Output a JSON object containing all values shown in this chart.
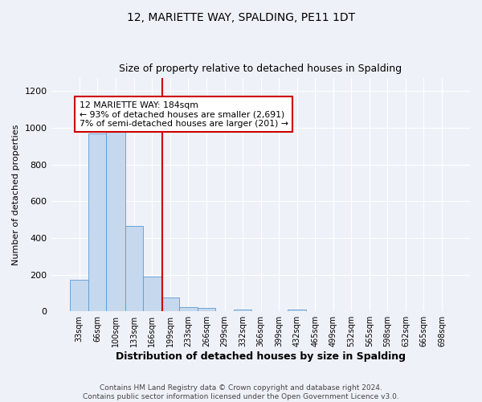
{
  "title": "12, MARIETTE WAY, SPALDING, PE11 1DT",
  "subtitle": "Size of property relative to detached houses in Spalding",
  "xlabel": "Distribution of detached houses by size in Spalding",
  "ylabel": "Number of detached properties",
  "bar_color": "#c5d8ed",
  "bar_edge_color": "#5b9bd5",
  "background_color": "#eef2f8",
  "grid_color": "#ffffff",
  "bin_labels": [
    "33sqm",
    "66sqm",
    "100sqm",
    "133sqm",
    "166sqm",
    "199sqm",
    "233sqm",
    "266sqm",
    "299sqm",
    "332sqm",
    "366sqm",
    "399sqm",
    "432sqm",
    "465sqm",
    "499sqm",
    "532sqm",
    "565sqm",
    "598sqm",
    "632sqm",
    "665sqm",
    "698sqm"
  ],
  "bin_edges": [
    16.5,
    49.5,
    82.5,
    116.5,
    149.5,
    182.5,
    215.5,
    248.5,
    281.5,
    314.5,
    347.5,
    380.5,
    413.5,
    446.5,
    479.5,
    512.5,
    545.5,
    578.5,
    611.5,
    644.5,
    677.5,
    710.5
  ],
  "bar_heights": [
    170,
    970,
    1000,
    465,
    190,
    75,
    25,
    18,
    0,
    10,
    0,
    0,
    10,
    0,
    0,
    0,
    0,
    0,
    0,
    0,
    0
  ],
  "vline_x": 184,
  "vline_color": "#cc0000",
  "ylim": [
    0,
    1270
  ],
  "yticks": [
    0,
    200,
    400,
    600,
    800,
    1000,
    1200
  ],
  "annotation_line1": "12 MARIETTE WAY: 184sqm",
  "annotation_line2": "← 93% of detached houses are smaller (2,691)",
  "annotation_line3": "7% of semi-detached houses are larger (201) →",
  "annotation_box_color": "#ffffff",
  "annotation_border_color": "#cc0000",
  "footer_line1": "Contains HM Land Registry data © Crown copyright and database right 2024.",
  "footer_line2": "Contains public sector information licensed under the Open Government Licence v3.0."
}
